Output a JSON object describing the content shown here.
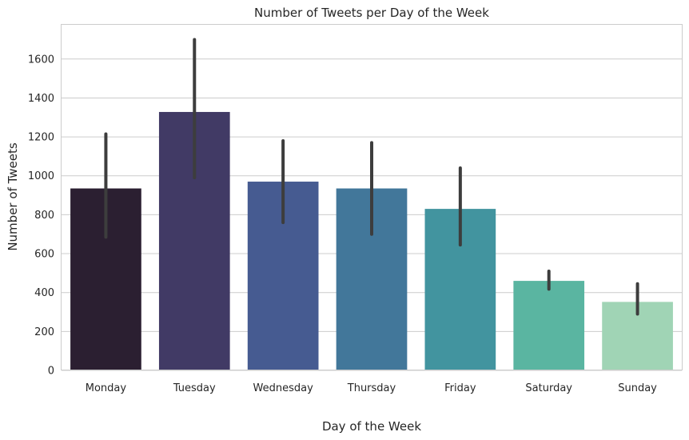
{
  "chart_data": {
    "type": "bar",
    "title": "Number of Tweets per Day of the Week",
    "xlabel": "Day of the Week",
    "ylabel": "Number of Tweets",
    "categories": [
      "Monday",
      "Tuesday",
      "Wednesday",
      "Thursday",
      "Friday",
      "Saturday",
      "Sunday"
    ],
    "values": [
      935,
      1328,
      970,
      935,
      830,
      460,
      352
    ],
    "error_low": [
      685,
      990,
      760,
      700,
      645,
      418,
      290
    ],
    "error_high": [
      1215,
      1700,
      1180,
      1170,
      1040,
      510,
      445
    ],
    "bar_colors": [
      "#2b1f31",
      "#413a65",
      "#465b91",
      "#42779a",
      "#42949f",
      "#5ab5a1",
      "#a0d4b5"
    ],
    "error_color": "#3d3d3d",
    "yticks": [
      0,
      200,
      400,
      600,
      800,
      1000,
      1200,
      1400,
      1600
    ],
    "ylim": [
      0,
      1780
    ],
    "grid": "y",
    "legend": "none"
  }
}
